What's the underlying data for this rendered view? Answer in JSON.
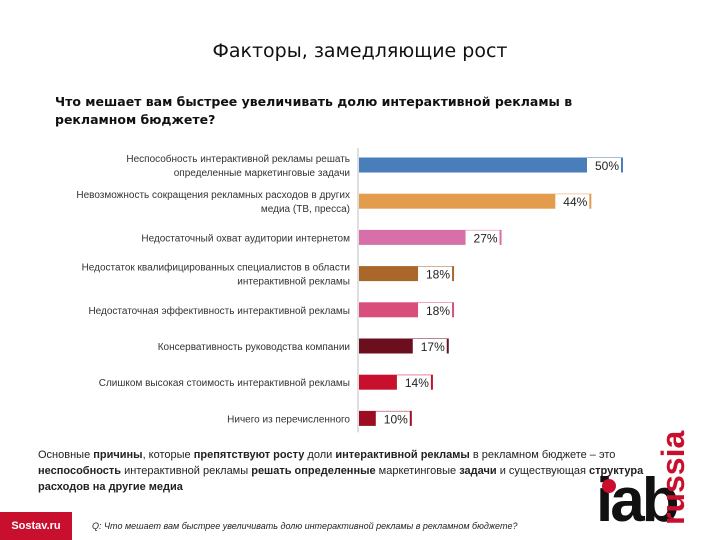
{
  "title": "Факторы, замедляющие рост",
  "question": "Что мешает вам быстрее увеличивать долю интерактивной рекламы в рекламном бюджете?",
  "chart_data": {
    "type": "bar",
    "orientation": "horizontal",
    "title": "Что мешает вам быстрее увеличивать долю интерактивной рекламы в рекламном бюджете?",
    "xlabel": "",
    "ylabel": "",
    "xlim": [
      0,
      50
    ],
    "unit": "%",
    "categories": [
      [
        "Неспособность интерактивной рекламы решать",
        "определенные маркетинговые задачи"
      ],
      [
        "Невозможность сокращения рекламных расходов в других",
        "медиа (ТВ, пресса)"
      ],
      [
        "Недостаточный охват аудитории интернетом"
      ],
      [
        "Недостаток квалифицированных специалистов в области",
        "интерактивной рекламы"
      ],
      [
        "Недостаточная эффективность интерактивной рекламы"
      ],
      [
        "Консервативность руководства компании"
      ],
      [
        "Слишком высокая стоимость интерактивной рекламы"
      ],
      [
        "Ничего из перечисленного"
      ]
    ],
    "values": [
      50,
      44,
      27,
      18,
      18,
      17,
      14,
      10
    ],
    "value_labels": [
      "50%",
      "44%",
      "27%",
      "18%",
      "18%",
      "17%",
      "14%",
      "10%"
    ],
    "colors": [
      "#4a7ebb",
      "#e39b4e",
      "#d96fa8",
      "#a9682a",
      "#d94f7c",
      "#6b0f1e",
      "#c8102e",
      "#9c0d24"
    ]
  },
  "summary": {
    "p1": "Основные ",
    "b1": "причины",
    "p2": ", которые ",
    "b2": "препятствуют росту",
    "p3": " доли ",
    "b3": "интерактивной рекламы",
    "p4": " в рекламном бюджете – это ",
    "b4": "неспособность",
    "p5": " интерактивной рекламы ",
    "b5": "решать определенные",
    "p6": " маркетинговые ",
    "b6": "задачи",
    "p7": " и существующая ",
    "b7": "структура расходов на другие медиа"
  },
  "footnote": "Q: Что мешает вам быстрее увеличивать долю интерактивной рекламы в рекламном бюджете?",
  "logos": {
    "sostav": "Sostav.ru",
    "iab": "iab",
    "russia": "russia"
  },
  "colors": {
    "brand_red": "#c8102e"
  }
}
